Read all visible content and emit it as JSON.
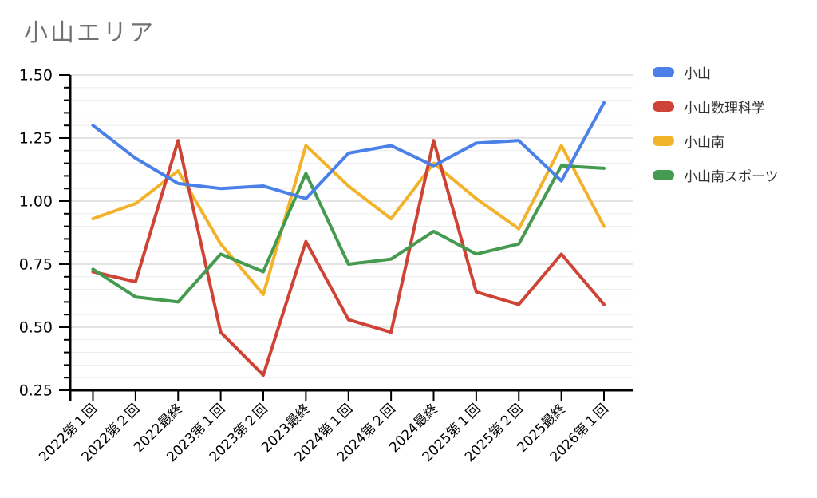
{
  "title": {
    "text": "小山エリア",
    "color": "#717171"
  },
  "legend": {
    "position": "right"
  },
  "axis_colors": {
    "axis_line": "#000000",
    "major_grid": "#c9c9c9",
    "minor_grid": "#ededed",
    "tick_label": "#000000"
  },
  "chart_data": {
    "type": "line",
    "title": "小山エリア",
    "categories": [
      "2022第１回",
      "2022第２回",
      "2022最終",
      "2023第１回",
      "2023第２回",
      "2023最終",
      "2024第１回",
      "2024第２回",
      "2024最終",
      "2025第１回",
      "2025第２回",
      "2025最終",
      "2026第１回"
    ],
    "series": [
      {
        "name": "小山",
        "color": "#4A80E8",
        "values": [
          1.3,
          1.17,
          1.07,
          1.05,
          1.06,
          1.01,
          1.19,
          1.22,
          1.14,
          1.23,
          1.24,
          1.08,
          1.39
        ]
      },
      {
        "name": "小山数理科学",
        "color": "#CE4335",
        "values": [
          0.72,
          0.68,
          1.24,
          0.48,
          0.31,
          0.84,
          0.53,
          0.48,
          1.24,
          0.64,
          0.59,
          0.79,
          0.59
        ]
      },
      {
        "name": "小山南",
        "color": "#F2B32A",
        "values": [
          0.93,
          0.99,
          1.12,
          0.83,
          0.63,
          1.22,
          1.06,
          0.93,
          1.15,
          1.01,
          0.89,
          1.22,
          0.9
        ]
      },
      {
        "name": "小山南スポーツ",
        "color": "#449A4E",
        "values": [
          0.73,
          0.62,
          0.6,
          0.79,
          0.72,
          1.11,
          0.75,
          0.77,
          0.88,
          0.79,
          0.83,
          1.14,
          1.13
        ]
      }
    ],
    "ylim": [
      0.25,
      1.5
    ],
    "y_major_step": 0.25,
    "y_minor_step": 0.05,
    "y_tick_labels": [
      "1.50",
      "1.25",
      "1.00",
      "0.75",
      "0.50",
      "0.25"
    ],
    "xlabel": "",
    "ylabel": "",
    "grid": true,
    "legend_position": "right"
  }
}
